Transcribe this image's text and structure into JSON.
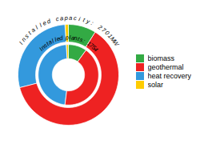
{
  "chart_data": {
    "type": "pie",
    "categories": [
      "biomass",
      "geothermal",
      "heat recovery",
      "solar"
    ],
    "colors": [
      "#33aa44",
      "#ee2222",
      "#3399dd",
      "#ffcc00"
    ],
    "series": [
      {
        "name": "Installed capacity: 2701MW",
        "values": [
          9.0,
          62.0,
          28.0,
          1.0
        ]
      },
      {
        "name": "Installed plants: 1754",
        "values": [
          10.0,
          42.0,
          47.0,
          1.0
        ]
      }
    ],
    "legend": "right"
  }
}
